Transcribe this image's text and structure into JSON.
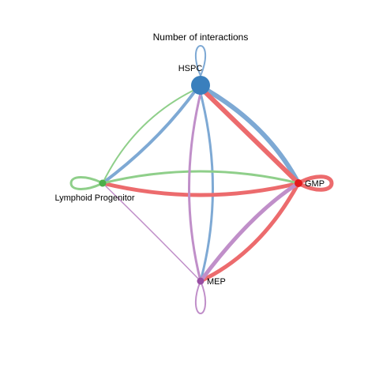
{
  "title": "Number of interactions",
  "nodes": [
    {
      "id": "hspc",
      "label": "HSPC",
      "color": "#3a7fbd"
    },
    {
      "id": "lymphoid",
      "label": "Lymphoid Progenitor",
      "color": "#4daf4a"
    },
    {
      "id": "gmp",
      "label": "GMP",
      "color": "#e41a1c"
    },
    {
      "id": "mep",
      "label": "MEP",
      "color": "#984ea3"
    }
  ],
  "edge_colors": {
    "from_hspc": "#7ea9d4",
    "from_lymphoid": "#8fcf8a",
    "from_gmp": "#ec6b6d",
    "from_mep": "#c08fc9"
  }
}
